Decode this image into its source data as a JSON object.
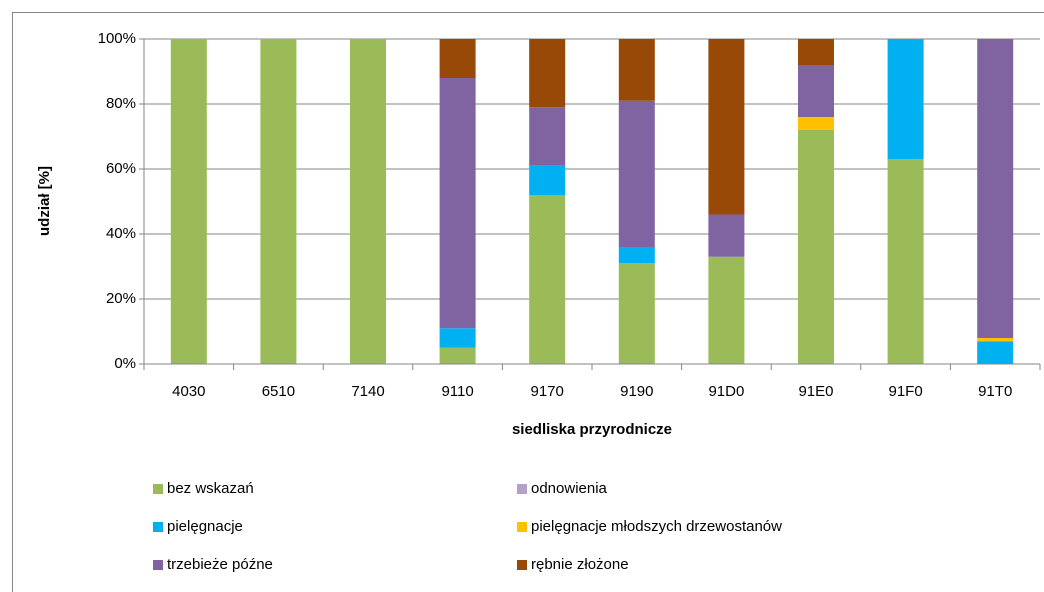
{
  "chart_data": {
    "type": "stacked_bar",
    "ylabel": "udział [%]",
    "xlabel": "siedliska przyrodnicze",
    "categories": [
      "4030",
      "6510",
      "7140",
      "9110",
      "9170",
      "9190",
      "91D0",
      "91E0",
      "91F0",
      "91T0"
    ],
    "series": [
      {
        "name": "bez wskazań",
        "color": "#9bbb59",
        "values": [
          100,
          100,
          100,
          5,
          52,
          31,
          33,
          72,
          63,
          0
        ]
      },
      {
        "name": "odnowienia",
        "color": "#b3a2c7",
        "values": [
          0,
          0,
          0,
          0,
          0,
          0,
          0,
          0,
          0,
          0
        ]
      },
      {
        "name": "pielęgnacje",
        "color": "#00b0f0",
        "values": [
          0,
          0,
          0,
          6,
          9,
          5,
          0,
          0,
          37,
          7
        ]
      },
      {
        "name": "pielęgnacje młodszych drzewostanów",
        "color": "#ffc000",
        "values": [
          0,
          0,
          0,
          0,
          0,
          0,
          0,
          4,
          0,
          1
        ]
      },
      {
        "name": "trzebieże późne",
        "color": "#8064a2",
        "values": [
          0,
          0,
          0,
          77,
          18,
          45,
          13,
          16,
          0,
          92
        ]
      },
      {
        "name": "rębnie złożone",
        "color": "#984807",
        "values": [
          0,
          0,
          0,
          12,
          21,
          19,
          54,
          8,
          0,
          0
        ]
      }
    ],
    "ylim": [
      0,
      100
    ],
    "yticks": [
      {
        "value": 0,
        "label": "0%"
      },
      {
        "value": 20,
        "label": "20%"
      },
      {
        "value": 40,
        "label": "40%"
      },
      {
        "value": 60,
        "label": "60%"
      },
      {
        "value": 80,
        "label": "80%"
      },
      {
        "value": 100,
        "label": "100%"
      }
    ],
    "grid": true
  }
}
